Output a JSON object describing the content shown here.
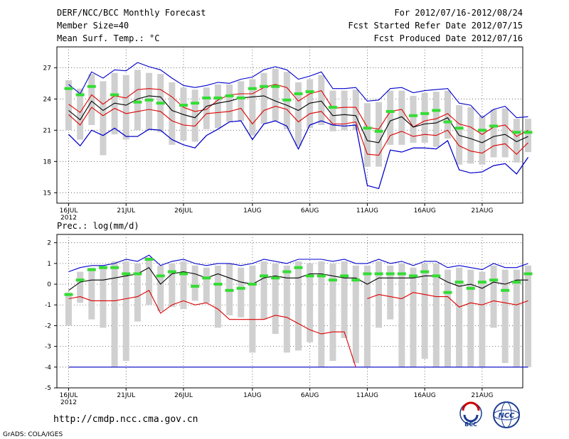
{
  "header": {
    "title": "DERF/NCC/BCC Monthly Forecast",
    "member_size": "Member Size=40",
    "variable": "Mean Surf. Temp.: °C",
    "forecast_range": "For 2012/07/16-2012/08/24",
    "fcst_started": "Fcst Started Refer Date 2012/07/15",
    "fcst_produced": "Fcst Produced Date 2012/07/16"
  },
  "footer": {
    "url": "http://cmdp.ncc.cma.gov.cn",
    "grads": "GrADS: COLA/IGES",
    "logo_left": "BCC",
    "logo_right": "NCC"
  },
  "colors": {
    "ensemble_max_min": "#0000cc",
    "spread": "#dd0000",
    "mean": "#000000",
    "observed": "#33dd33",
    "member_box": "#d0d0d0"
  },
  "chart_data": [
    {
      "type": "line",
      "title": "Mean Surf. Temp.: °C",
      "x_tick_labels": [
        "16JUL",
        "21JUL",
        "26JUL",
        "1AUG",
        "6AUG",
        "11AUG",
        "16AUG",
        "21AUG"
      ],
      "x_tick_days": [
        0,
        5,
        10,
        16,
        21,
        26,
        31,
        36
      ],
      "year_label": "2012",
      "ylim": [
        14,
        29
      ],
      "y_ticks": [
        15,
        18,
        21,
        24,
        27
      ],
      "series": [
        {
          "name": "max",
          "color": "#0000cc",
          "values": [
            20.6,
            19.5,
            21.0,
            20.5,
            21.2,
            20.4,
            20.4,
            21.1,
            21.0,
            20.1,
            19.6,
            19.3,
            20.5,
            21.1,
            21.8,
            21.9,
            20.1,
            21.6,
            21.9,
            21.4,
            19.2,
            21.5,
            21.9,
            21.5,
            21.4,
            21.5,
            15.7,
            15.4,
            19.1,
            18.9,
            19.3,
            19.3,
            19.2,
            20.0,
            17.2,
            16.9,
            17.0,
            17.6,
            17.8,
            16.8,
            18.4
          ]
        },
        {
          "name": "p90",
          "color": "#dd0000",
          "values": [
            23.5,
            22.7,
            24.4,
            23.5,
            24.3,
            24.1,
            24.9,
            25.0,
            24.9,
            24.2,
            23.2,
            22.8,
            23.0,
            23.9,
            24.4,
            24.5,
            24.5,
            25.1,
            25.4,
            25.1,
            23.8,
            24.5,
            24.8,
            23.1,
            23.2,
            23.2,
            21.3,
            21.1,
            22.8,
            23.0,
            21.3,
            21.9,
            22.1,
            22.6,
            21.6,
            21.3,
            20.6,
            21.3,
            21.5,
            20.4,
            21.0
          ]
        },
        {
          "name": "mean",
          "color": "#000000",
          "values": [
            22.9,
            22.0,
            23.8,
            22.9,
            23.6,
            23.4,
            24.0,
            24.3,
            24.2,
            22.9,
            22.5,
            22.2,
            23.3,
            23.6,
            23.8,
            24.1,
            24.2,
            24.3,
            23.8,
            23.4,
            22.9,
            23.6,
            23.8,
            22.4,
            22.5,
            22.4,
            20.0,
            19.8,
            21.9,
            22.3,
            21.3,
            21.6,
            21.7,
            22.2,
            20.5,
            20.2,
            19.8,
            20.4,
            20.6,
            19.9,
            20.4
          ]
        },
        {
          "name": "p10",
          "color": "#dd0000",
          "values": [
            22.5,
            21.5,
            23.2,
            22.4,
            23.1,
            22.6,
            22.8,
            23.0,
            22.8,
            21.9,
            21.5,
            21.4,
            22.6,
            22.7,
            22.8,
            23.1,
            21.6,
            22.9,
            23.3,
            23.0,
            21.8,
            22.6,
            22.8,
            21.6,
            21.6,
            21.8,
            18.7,
            18.6,
            20.5,
            20.9,
            20.4,
            20.6,
            20.5,
            21.0,
            19.5,
            19.0,
            18.8,
            19.5,
            19.7,
            18.7,
            19.8
          ]
        },
        {
          "name": "min",
          "color": "#0000cc",
          "values": [
            20.6,
            19.5,
            21.0,
            20.5,
            21.2,
            20.4,
            20.4,
            21.1,
            21.0,
            20.1,
            19.6,
            19.3,
            20.5,
            21.1,
            21.8,
            21.9,
            20.1,
            21.6,
            21.9,
            21.4,
            19.2,
            21.5,
            21.9,
            21.5,
            21.4,
            21.5,
            15.7,
            15.4,
            19.1,
            18.9,
            19.3,
            19.3,
            19.2,
            20.0,
            17.2,
            16.9,
            17.0,
            17.6,
            17.8,
            16.8,
            18.4
          ]
        },
        {
          "name": "upper",
          "color": "#0000cc",
          "values": [
            25.4,
            24.5,
            26.6,
            26.0,
            26.8,
            26.7,
            27.5,
            27.1,
            26.8,
            26.0,
            25.3,
            25.1,
            25.3,
            25.6,
            25.5,
            25.9,
            26.1,
            26.8,
            27.1,
            26.8,
            25.9,
            26.2,
            26.6,
            25.0,
            25.0,
            25.1,
            23.8,
            23.9,
            25.0,
            25.1,
            24.6,
            24.8,
            24.9,
            25.0,
            23.6,
            23.4,
            22.2,
            23.0,
            23.3,
            22.2,
            22.3
          ]
        },
        {
          "name": "observed",
          "color": "#33dd33",
          "type": "marker",
          "values": [
            25.0,
            24.4,
            25.2,
            null,
            24.4,
            null,
            23.7,
            23.9,
            23.6,
            null,
            23.4,
            23.6,
            24.1,
            24.1,
            24.3,
            24.1,
            25.0,
            25.2,
            25.2,
            23.9,
            24.5,
            24.7,
            null,
            23.2,
            null,
            null,
            21.2,
            20.9,
            22.8,
            null,
            22.4,
            22.6,
            22.9,
            21.8,
            21.2,
            null,
            21.0,
            21.4,
            null,
            20.8,
            20.8
          ]
        },
        {
          "name": "box_top",
          "color": "#d0d0d0",
          "type": "box",
          "values": [
            25.8,
            25.0,
            26.4,
            25.7,
            26.5,
            26.3,
            26.8,
            26.5,
            26.4,
            25.6,
            25.1,
            24.9,
            25.1,
            25.4,
            25.4,
            25.7,
            25.9,
            26.5,
            26.9,
            26.6,
            25.6,
            25.9,
            26.3,
            24.8,
            24.8,
            24.9,
            23.6,
            23.7,
            24.8,
            24.8,
            24.3,
            24.6,
            24.7,
            24.8,
            23.4,
            23.2,
            22.4,
            23.0,
            23.1,
            22.1,
            22.1
          ]
        },
        {
          "name": "box_bottom",
          "color": "#d0d0d0",
          "type": "box",
          "values": [
            21.0,
            20.1,
            21.5,
            18.6,
            20.6,
            20.1,
            21.0,
            21.0,
            20.8,
            19.6,
            20.0,
            19.9,
            21.1,
            21.2,
            21.8,
            21.9,
            20.5,
            21.6,
            21.9,
            21.1,
            19.5,
            21.2,
            21.5,
            20.9,
            21.0,
            21.0,
            17.5,
            17.5,
            19.6,
            19.6,
            19.8,
            19.8,
            19.4,
            20.2,
            17.7,
            17.8,
            17.7,
            18.4,
            18.4,
            17.9,
            18.9
          ]
        }
      ]
    },
    {
      "type": "line",
      "title": "Prec.: log(mm/d)",
      "x_tick_labels": [
        "16JUL",
        "21JUL",
        "26JUL",
        "1AUG",
        "6AUG",
        "11AUG",
        "16AUG",
        "21AUG"
      ],
      "x_tick_days": [
        0,
        5,
        10,
        16,
        21,
        26,
        31,
        36
      ],
      "year_label": "2012",
      "ylim": [
        -5,
        2.4
      ],
      "y_ticks": [
        -5,
        -4,
        -3,
        -2,
        -1,
        0,
        1,
        2
      ],
      "series": [
        {
          "name": "upper",
          "color": "#0000cc",
          "values": [
            0.6,
            0.8,
            0.9,
            0.9,
            1.0,
            1.2,
            1.1,
            1.4,
            0.9,
            1.1,
            1.2,
            1.0,
            0.9,
            1.0,
            1.0,
            0.9,
            1.0,
            1.2,
            1.1,
            1.0,
            1.2,
            1.2,
            1.2,
            1.1,
            1.2,
            1.0,
            1.0,
            1.2,
            1.0,
            1.1,
            0.9,
            1.1,
            1.1,
            0.8,
            0.9,
            0.8,
            0.7,
            1.0,
            0.8,
            0.8,
            1.0
          ]
        },
        {
          "name": "mean",
          "color": "#000000",
          "values": [
            -0.3,
            0.1,
            0.2,
            0.2,
            0.3,
            0.4,
            0.5,
            0.8,
            0.0,
            0.5,
            0.6,
            0.5,
            0.3,
            0.5,
            0.3,
            0.1,
            0.0,
            0.3,
            0.4,
            0.3,
            0.3,
            0.5,
            0.5,
            0.4,
            0.3,
            0.3,
            0.0,
            0.3,
            0.3,
            0.3,
            0.3,
            0.4,
            0.4,
            0.1,
            -0.1,
            0.0,
            -0.2,
            0.1,
            0.0,
            0.2,
            0.2
          ]
        },
        {
          "name": "lower",
          "color": "#dd0000",
          "values": [
            -0.7,
            -0.6,
            -0.8,
            -0.8,
            -0.8,
            -0.7,
            -0.6,
            -0.3,
            -1.4,
            -1.0,
            -0.8,
            -1.0,
            -0.9,
            -1.2,
            -1.7,
            -1.7,
            -1.7,
            -1.7,
            -1.5,
            -1.6,
            -1.9,
            -2.2,
            -2.4,
            -2.3,
            -2.3,
            -4.0,
            null,
            null,
            null,
            null,
            null,
            null,
            null,
            null,
            null,
            null,
            null,
            null,
            null,
            null,
            null
          ]
        },
        {
          "name": "p10",
          "color": "#dd0000",
          "values": [
            null,
            null,
            null,
            null,
            null,
            null,
            null,
            null,
            null,
            null,
            null,
            null,
            null,
            null,
            null,
            null,
            null,
            null,
            null,
            null,
            null,
            null,
            null,
            null,
            null,
            null,
            -0.7,
            -0.5,
            -0.6,
            -0.7,
            -0.4,
            -0.5,
            -0.6,
            -0.6,
            -1.1,
            -0.9,
            -1.0,
            -0.8,
            -0.9,
            -1.0,
            -0.8
          ]
        },
        {
          "name": "observed",
          "color": "#33dd33",
          "type": "marker",
          "values": [
            -0.5,
            0.2,
            0.7,
            0.8,
            0.8,
            0.5,
            0.5,
            1.2,
            0.4,
            0.6,
            0.5,
            -0.1,
            0.3,
            0.0,
            -0.3,
            -0.2,
            0.0,
            0.4,
            0.3,
            0.6,
            0.8,
            0.4,
            0.4,
            0.2,
            0.4,
            0.2,
            0.5,
            0.5,
            0.5,
            0.5,
            0.4,
            0.6,
            0.4,
            -0.4,
            0.1,
            -0.2,
            0.1,
            0.2,
            -0.3,
            0.1,
            0.5
          ]
        },
        {
          "name": "box_top",
          "color": "#d0d0d0",
          "type": "box",
          "values": [
            -0.4,
            0.6,
            0.8,
            0.9,
            1.1,
            1.1,
            1.0,
            1.3,
            0.9,
            1.0,
            1.1,
            0.9,
            0.8,
            0.9,
            1.0,
            0.8,
            0.9,
            1.1,
            1.0,
            0.9,
            1.1,
            1.0,
            1.1,
            1.0,
            1.1,
            0.9,
            0.9,
            1.1,
            0.9,
            1.0,
            0.8,
            1.0,
            1.0,
            0.7,
            0.8,
            0.7,
            0.6,
            0.9,
            0.7,
            0.7,
            0.9
          ]
        },
        {
          "name": "box_bottom",
          "color": "#d0d0d0",
          "type": "box",
          "values": [
            -2.0,
            -0.9,
            -1.7,
            -2.1,
            -4.0,
            -3.7,
            -1.8,
            -1.0,
            -1.3,
            -1.1,
            -1.2,
            -0.8,
            -0.9,
            -2.1,
            -1.5,
            -1.6,
            -3.3,
            -1.7,
            -2.4,
            -3.3,
            -3.2,
            -2.8,
            -4.0,
            -3.7,
            -2.6,
            -3.8,
            -4.0,
            -2.1,
            -1.7,
            -4.0,
            -4.0,
            -3.6,
            -4.0,
            -4.0,
            -4.0,
            -4.0,
            -4.0,
            -2.1,
            -3.8,
            -4.0,
            -4.0
          ]
        },
        {
          "name": "floor",
          "color": "#0000cc",
          "values": [
            -4.0,
            -4.0,
            -4.0,
            -4.0,
            -4.0,
            -4.0,
            -4.0,
            -4.0,
            -4.0,
            -4.0,
            -4.0,
            -4.0,
            -4.0,
            -4.0,
            -4.0,
            -4.0,
            -4.0,
            -4.0,
            -4.0,
            -4.0,
            -4.0,
            -4.0,
            -4.0,
            -4.0,
            -4.0,
            -4.0,
            -4.0,
            -4.0,
            -4.0,
            -4.0,
            -4.0,
            -4.0,
            -4.0,
            -4.0,
            -4.0,
            -4.0,
            -4.0,
            -4.0,
            -4.0,
            -4.0,
            -4.0
          ]
        }
      ]
    }
  ]
}
